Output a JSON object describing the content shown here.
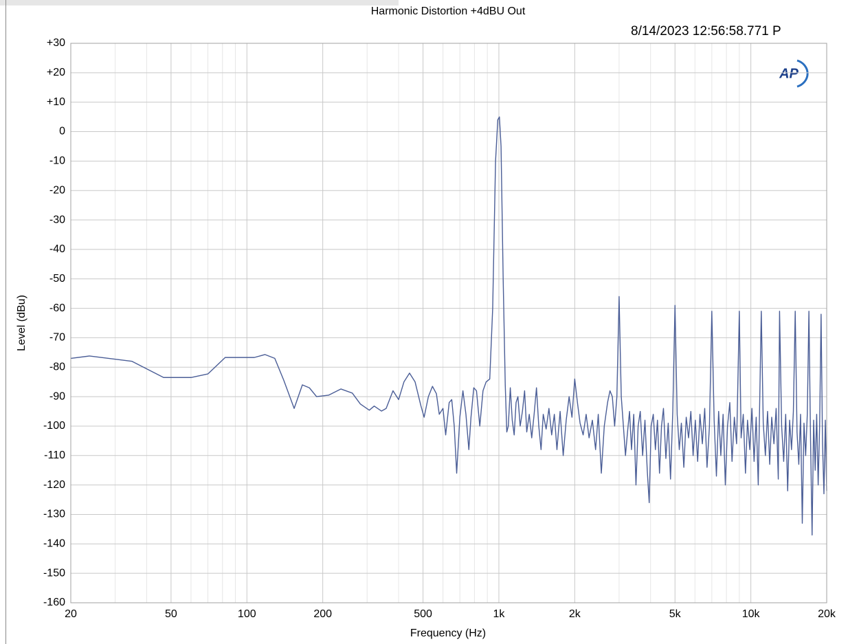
{
  "chart_data": {
    "type": "line",
    "title": "Harmonic Distortion +4dBU Out",
    "timestamp": "8/14/2023 12:56:58.771 P",
    "logo": "AP",
    "x_label": "Frequency (Hz)",
    "y_label": "Level (dBu)",
    "xscale": "log",
    "grid": true,
    "xlim": [
      20,
      20000
    ],
    "ylim": [
      -160,
      30
    ],
    "xticks": [
      20,
      50,
      100,
      200,
      500,
      {
        "value": 1000,
        "label": "1k"
      },
      {
        "value": 2000,
        "label": "2k"
      },
      {
        "value": 5000,
        "label": "5k"
      },
      {
        "value": 10000,
        "label": "10k"
      },
      {
        "value": 20000,
        "label": "20k"
      }
    ],
    "xminorticks": [
      30,
      40,
      60,
      70,
      80,
      90,
      300,
      400,
      600,
      700,
      800,
      900,
      3000,
      4000,
      6000,
      7000,
      8000,
      9000
    ],
    "yticks": [
      -160,
      -150,
      -140,
      -130,
      -120,
      -110,
      -100,
      -90,
      -80,
      -70,
      -60,
      -50,
      -40,
      -30,
      -20,
      -10,
      0,
      {
        "value": 10,
        "label": "+10"
      },
      {
        "value": 20,
        "label": "+20"
      },
      {
        "value": 30,
        "label": "+30"
      }
    ],
    "x": [
      20,
      23.7,
      35,
      46.7,
      60,
      70,
      82,
      107,
      118,
      129,
      140,
      154,
      166,
      177,
      189,
      211,
      236,
      262,
      282,
      306,
      320,
      342,
      357,
      380,
      400,
      420,
      442,
      465,
      490,
      505,
      525,
      545,
      565,
      580,
      600,
      615,
      635,
      650,
      665,
      680,
      700,
      720,
      740,
      760,
      775,
      795,
      815,
      840,
      865,
      890,
      920,
      945,
      970,
      990,
      1005,
      1020,
      1040,
      1060,
      1075,
      1090,
      1110,
      1130,
      1150,
      1170,
      1190,
      1215,
      1240,
      1265,
      1290,
      1320,
      1350,
      1380,
      1410,
      1440,
      1470,
      1500,
      1540,
      1580,
      1620,
      1660,
      1700,
      1750,
      1800,
      1850,
      1900,
      1950,
      2000,
      2050,
      2100,
      2160,
      2220,
      2280,
      2350,
      2420,
      2480,
      2550,
      2620,
      2700,
      2760,
      2820,
      2880,
      2940,
      3000,
      3060,
      3120,
      3180,
      3240,
      3300,
      3360,
      3430,
      3500,
      3570,
      3640,
      3720,
      3800,
      3880,
      3950,
      4020,
      4100,
      4180,
      4260,
      4340,
      4420,
      4500,
      4600,
      4700,
      4800,
      4900,
      5000,
      5100,
      5200,
      5300,
      5420,
      5540,
      5660,
      5780,
      5900,
      6020,
      6150,
      6280,
      6420,
      6560,
      6700,
      6850,
      7000,
      7150,
      7300,
      7450,
      7600,
      7760,
      7920,
      8080,
      8250,
      8420,
      8600,
      8780,
      9000,
      9150,
      9330,
      9520,
      9700,
      9900,
      10100,
      10300,
      10500,
      10700,
      11000,
      11200,
      11420,
      11650,
      11880,
      12100,
      12350,
      12600,
      12850,
      13000,
      13250,
      13500,
      13750,
      14000,
      14250,
      14500,
      14750,
      15000,
      15250,
      15500,
      15750,
      16000,
      16250,
      16500,
      16750,
      17000,
      17250,
      17500,
      17750,
      18000,
      18250,
      18500,
      18750,
      19000,
      19250,
      19500,
      19750,
      20000
    ],
    "series": [
      {
        "color": "#4a5d96",
        "values": [
          -77,
          -76.2,
          -78,
          -83.5,
          -83.5,
          -82.3,
          -76.7,
          -76.7,
          -75.7,
          -77,
          -84.4,
          -94,
          -86,
          -87,
          -90,
          -89.5,
          -87.4,
          -88.8,
          -92.5,
          -94.6,
          -93.2,
          -94.9,
          -94,
          -88,
          -91,
          -85,
          -82,
          -85,
          -93,
          -97,
          -90,
          -86.5,
          -89,
          -96,
          -94,
          -103,
          -92,
          -91,
          -100,
          -116,
          -97,
          -88,
          -96,
          -108,
          -97,
          -87,
          -88,
          -100,
          -88,
          -85,
          -84,
          -60,
          -10,
          4,
          5,
          -5,
          -50,
          -86,
          -102,
          -100,
          -87,
          -98,
          -103,
          -92,
          -90,
          -100,
          -95,
          -88,
          -102,
          -96,
          -104,
          -96,
          -87,
          -100,
          -108,
          -96,
          -101,
          -94,
          -103,
          -96,
          -108,
          -95,
          -110,
          -98,
          -90,
          -97,
          -84,
          -92,
          -99,
          -103,
          -96,
          -104,
          -98,
          -108,
          -96,
          -116,
          -100,
          -92,
          -88,
          -90,
          -100,
          -90,
          -56,
          -90,
          -100,
          -110,
          -102,
          -95,
          -108,
          -96,
          -120,
          -100,
          -95,
          -110,
          -98,
          -115,
          -126,
          -100,
          -96,
          -108,
          -98,
          -116,
          -100,
          -94,
          -111,
          -99,
          -118,
          -95,
          -59,
          -96,
          -108,
          -99,
          -114,
          -97,
          -104,
          -95,
          -110,
          -98,
          -112,
          -96,
          -106,
          -94,
          -114,
          -100,
          -61,
          -98,
          -117,
          -95,
          -110,
          -96,
          -120,
          -100,
          -92,
          -112,
          -97,
          -106,
          -61,
          -104,
          -96,
          -116,
          -98,
          -108,
          -94,
          -112,
          -97,
          -120,
          -61,
          -99,
          -110,
          -95,
          -113,
          -97,
          -106,
          -94,
          -118,
          -61,
          -100,
          -112,
          -96,
          -122,
          -98,
          -108,
          -95,
          -61,
          -102,
          -113,
          -96,
          -133,
          -99,
          -110,
          -96,
          -61,
          -104,
          -137,
          -98,
          -115,
          -96,
          -120,
          -100,
          -62,
          -106,
          -123,
          -98,
          -122
        ]
      }
    ]
  }
}
